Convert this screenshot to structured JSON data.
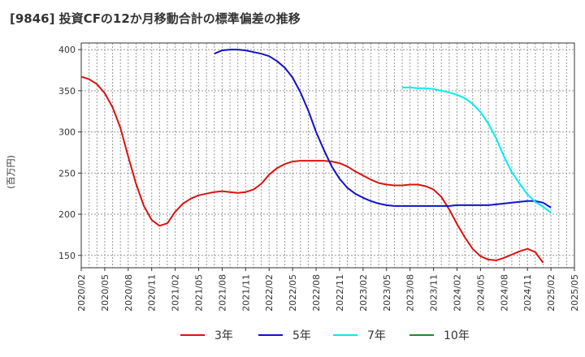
{
  "chart_data": {
    "type": "line",
    "title": "[9846]  投資CFの12か月移動合計の標準偏差の推移",
    "ylabel": "(百万円)",
    "xlabel": "",
    "ylim": [
      135,
      408
    ],
    "yticks": [
      150,
      200,
      250,
      300,
      350,
      400
    ],
    "x_tick_labels": [
      "2020/02",
      "2020/05",
      "2020/08",
      "2020/11",
      "2021/02",
      "2021/05",
      "2021/08",
      "2021/11",
      "2022/02",
      "2022/05",
      "2022/08",
      "2022/11",
      "2023/02",
      "2023/05",
      "2023/08",
      "2023/11",
      "2024/02",
      "2024/05",
      "2024/08",
      "2024/11",
      "2025/02",
      "2025/05"
    ],
    "x_start": "2020/02",
    "grid": true,
    "legend_position": "bottom",
    "series": [
      {
        "name": "3年",
        "color": "#dd1111",
        "start": "2020/02",
        "values": [
          367,
          364,
          358,
          347,
          330,
          305,
          270,
          237,
          210,
          193,
          186,
          189,
          203,
          213,
          219,
          223,
          225,
          227,
          228,
          227,
          226,
          227,
          230,
          237,
          248,
          256,
          261,
          264,
          265,
          265,
          265,
          265,
          264,
          262,
          258,
          252,
          247,
          242,
          238,
          236,
          235,
          235,
          236,
          236,
          234,
          230,
          221,
          206,
          188,
          172,
          158,
          149,
          145,
          144,
          147,
          151,
          155,
          158,
          154,
          141
        ]
      },
      {
        "name": "5年",
        "color": "#1111cc",
        "start": "2021/07",
        "values": [
          395,
          399,
          400,
          400,
          399,
          397,
          395,
          392,
          386,
          378,
          366,
          348,
          326,
          300,
          278,
          258,
          243,
          232,
          225,
          220,
          216,
          213,
          211,
          210,
          210,
          210,
          210,
          210,
          210,
          210,
          210,
          211,
          211,
          211,
          211,
          211,
          212,
          213,
          214,
          215,
          216,
          216,
          214,
          208
        ]
      },
      {
        "name": "7年",
        "color": "#00eeee",
        "start": "2023/07",
        "values": [
          354,
          354,
          353,
          353,
          352,
          350,
          348,
          345,
          341,
          334,
          324,
          310,
          292,
          270,
          251,
          237,
          224,
          215,
          209,
          202
        ]
      },
      {
        "name": "10年",
        "color": "#228b22",
        "start": "2025/02",
        "values": []
      }
    ]
  }
}
